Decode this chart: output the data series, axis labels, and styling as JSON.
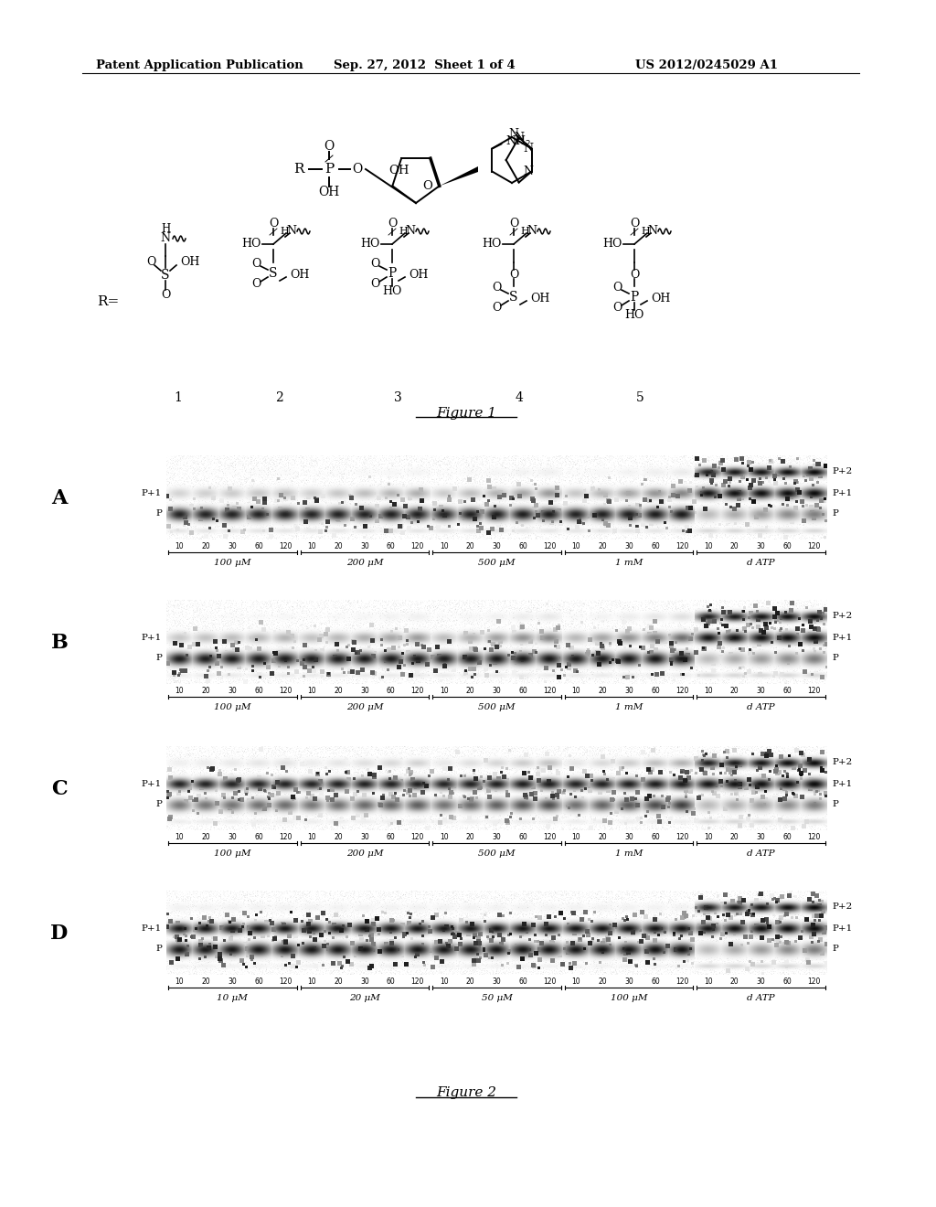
{
  "header_left": "Patent Application Publication",
  "header_mid": "Sep. 27, 2012  Sheet 1 of 4",
  "header_right": "US 2012/0245029 A1",
  "figure1_label": "Figure 1",
  "figure2_label": "Figure 2",
  "panel_labels": [
    "A",
    "B",
    "C",
    "D"
  ],
  "panel_A_concentrations": [
    "100 μM",
    "200 μM",
    "500 μM",
    "1 mM",
    "d ATP"
  ],
  "panel_B_concentrations": [
    "100 μM",
    "200 μM",
    "500 μM",
    "1 mM",
    "d ATP"
  ],
  "panel_C_concentrations": [
    "100 μM",
    "200 μM",
    "500 μM",
    "1 mM",
    "d ATP"
  ],
  "panel_D_concentrations": [
    "10 μM",
    "20 μM",
    "50 μM",
    "100 μM",
    "d ATP"
  ],
  "time_points": [
    "10",
    "20",
    "30",
    "60",
    "120"
  ],
  "bg_color": "#ffffff",
  "text_color": "#000000",
  "gel_noise_color": "#aaaaaa",
  "band_color": "#111111"
}
